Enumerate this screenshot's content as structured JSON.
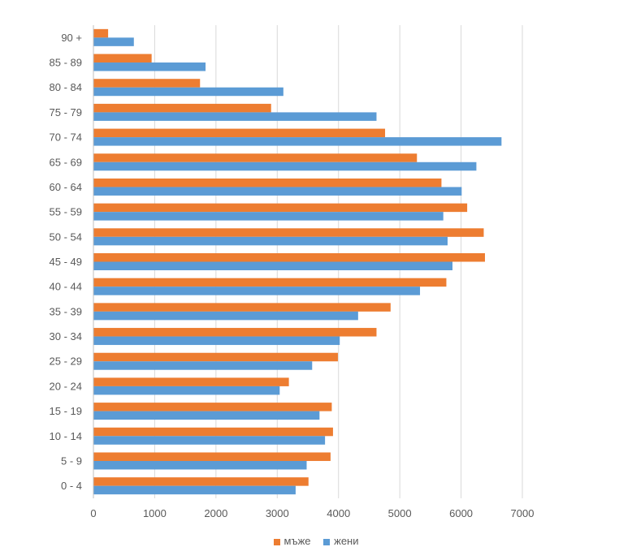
{
  "chart_data": {
    "type": "bar",
    "orientation": "horizontal",
    "title": "",
    "xlabel": "",
    "ylabel": "",
    "categories": [
      "0 - 4",
      "5 - 9",
      "10 - 14",
      "15 - 19",
      "20 - 24",
      "25 - 29",
      "30 - 34",
      "35 - 39",
      "40 - 44",
      "45 - 49",
      "50 - 54",
      "55 - 59",
      "60 - 64",
      "65 - 69",
      "70 - 74",
      "75 - 79",
      "80 - 84",
      "85 - 89",
      "90 +"
    ],
    "series": [
      {
        "name": "мъже",
        "color": "#ED7D31",
        "values": [
          3510,
          3870,
          3910,
          3890,
          3190,
          3990,
          4620,
          4850,
          5760,
          6390,
          6370,
          6100,
          5680,
          5280,
          4760,
          2900,
          1740,
          950,
          240
        ]
      },
      {
        "name": "жени",
        "color": "#5B9BD5",
        "values": [
          3300,
          3480,
          3780,
          3690,
          3040,
          3570,
          4020,
          4320,
          5330,
          5860,
          5780,
          5710,
          6010,
          6250,
          6660,
          4620,
          3100,
          1830,
          660
        ]
      }
    ],
    "xlim": [
      0,
      7000
    ],
    "xticks": [
      "0",
      "1000",
      "2000",
      "3000",
      "4000",
      "5000",
      "6000",
      "7000"
    ],
    "grid": true,
    "legend_position": "bottom"
  }
}
